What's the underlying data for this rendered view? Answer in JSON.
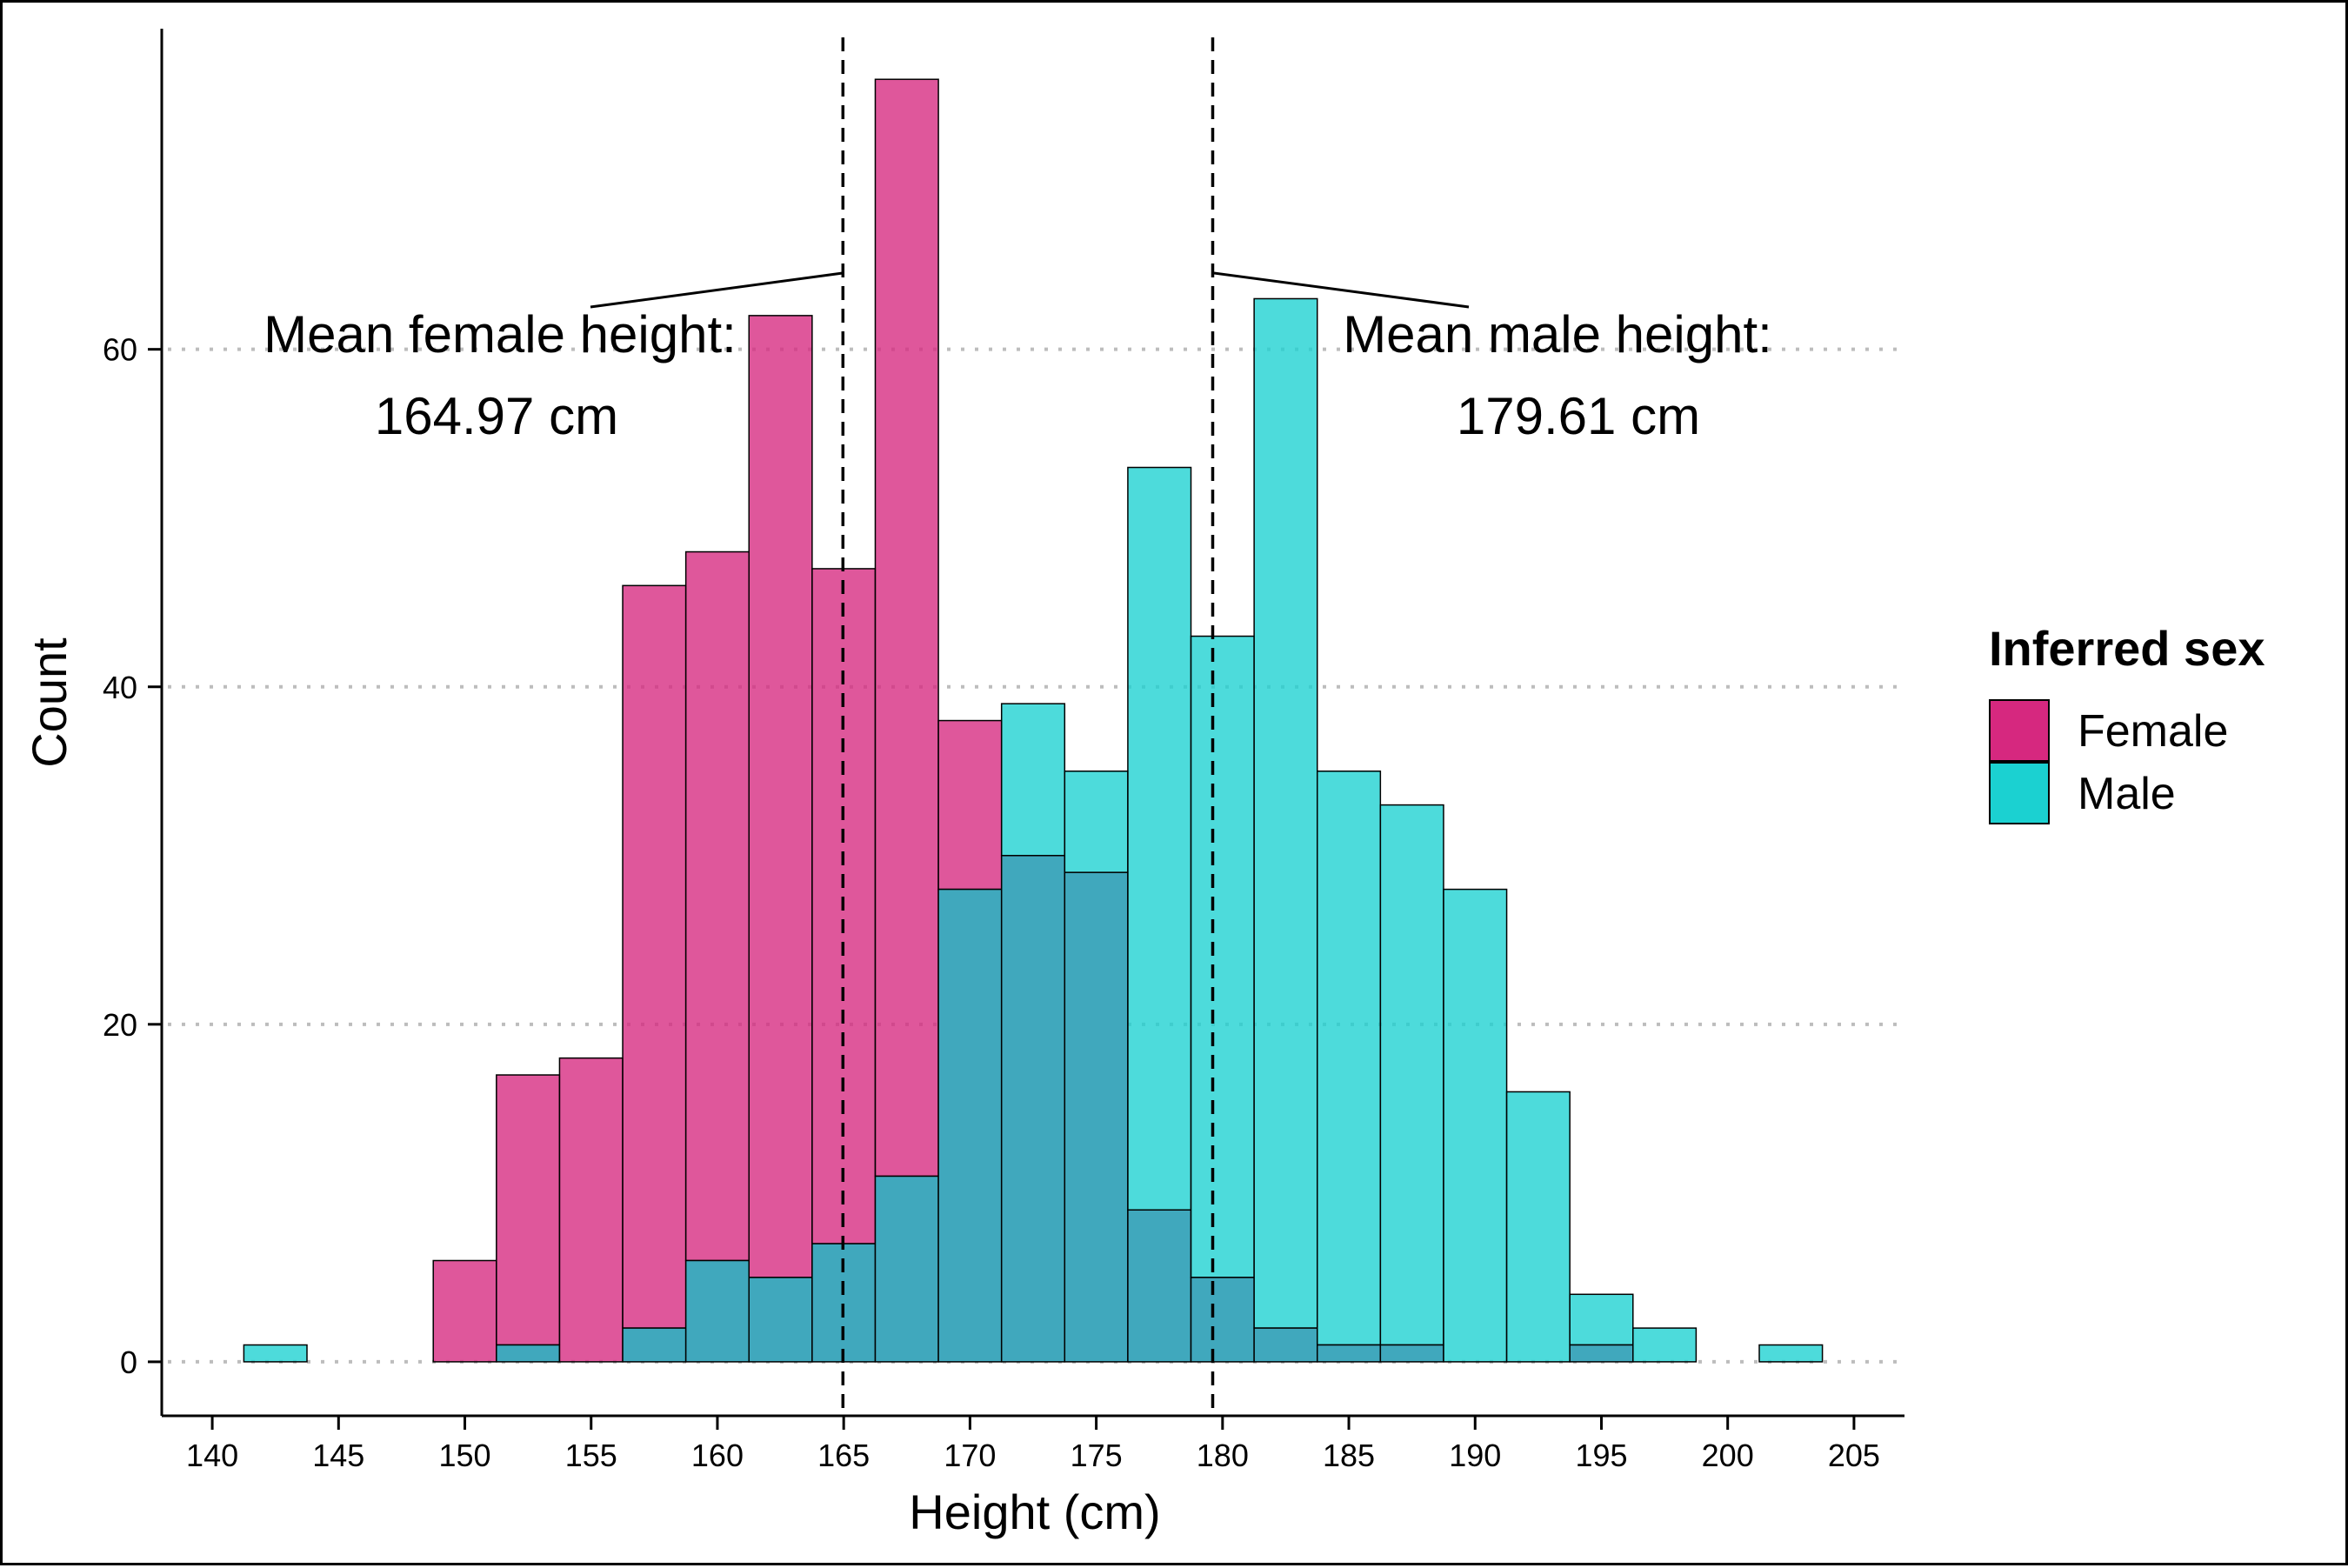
{
  "chart_data": {
    "type": "histogram",
    "xlabel": "Height (cm)",
    "ylabel": "Count",
    "xlim": [
      138,
      207
    ],
    "ylim": [
      -3.2,
      79
    ],
    "x_ticks": [
      140,
      145,
      150,
      155,
      160,
      165,
      170,
      175,
      180,
      185,
      190,
      195,
      200,
      205
    ],
    "y_ticks": [
      0,
      20,
      40,
      60
    ],
    "grid": "horizontal dotted",
    "bin_width": 2.5,
    "bin_starts": [
      141.25,
      143.75,
      146.25,
      148.75,
      151.25,
      153.75,
      156.25,
      158.75,
      161.25,
      163.75,
      166.25,
      168.75,
      171.25,
      173.75,
      176.25,
      178.75,
      181.25,
      183.75,
      186.25,
      188.75,
      191.25,
      193.75,
      196.25,
      198.75,
      201.25
    ],
    "series": [
      {
        "name": "Female",
        "color": "#d6287f",
        "values": [
          0,
          0,
          0,
          6,
          17,
          18,
          46,
          48,
          62,
          47,
          76,
          38,
          30,
          29,
          9,
          5,
          2,
          1,
          1,
          0,
          0,
          1,
          0,
          0,
          0
        ]
      },
      {
        "name": "Male",
        "color": "#1bd1d1",
        "values": [
          1,
          0,
          0,
          0,
          1,
          0,
          2,
          6,
          5,
          7,
          11,
          28,
          39,
          35,
          53,
          43,
          63,
          35,
          33,
          28,
          16,
          4,
          2,
          0,
          1
        ]
      }
    ],
    "overlap_color": "#40a8bd",
    "legend": {
      "title": "Inferred sex",
      "position": "right",
      "items": [
        {
          "label": "Female",
          "color": "#d6287f"
        },
        {
          "label": "Male",
          "color": "#1bd1d1"
        }
      ]
    },
    "mean_lines": [
      {
        "x": 164.97,
        "text_line1": "Mean female height:",
        "text_line2": "164.97 cm"
      },
      {
        "x": 179.61,
        "text_line1": "Mean male height:",
        "text_line2": "179.61 cm"
      }
    ]
  }
}
